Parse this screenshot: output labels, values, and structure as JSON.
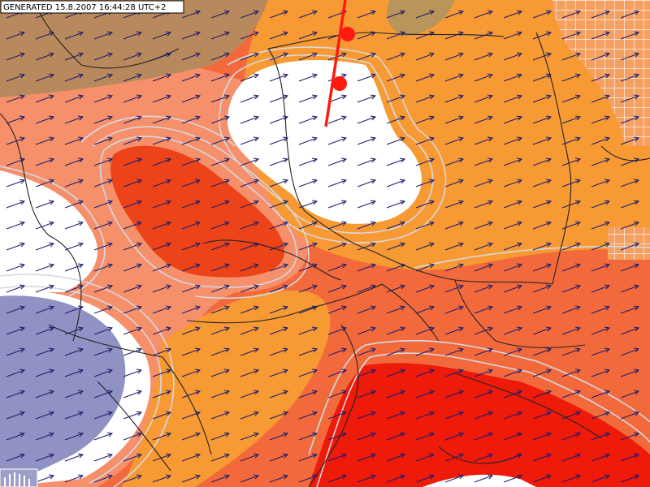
{
  "header": {
    "generated": "GENERATED 15.8.2007 16:44:28 UTC+2"
  }
}
